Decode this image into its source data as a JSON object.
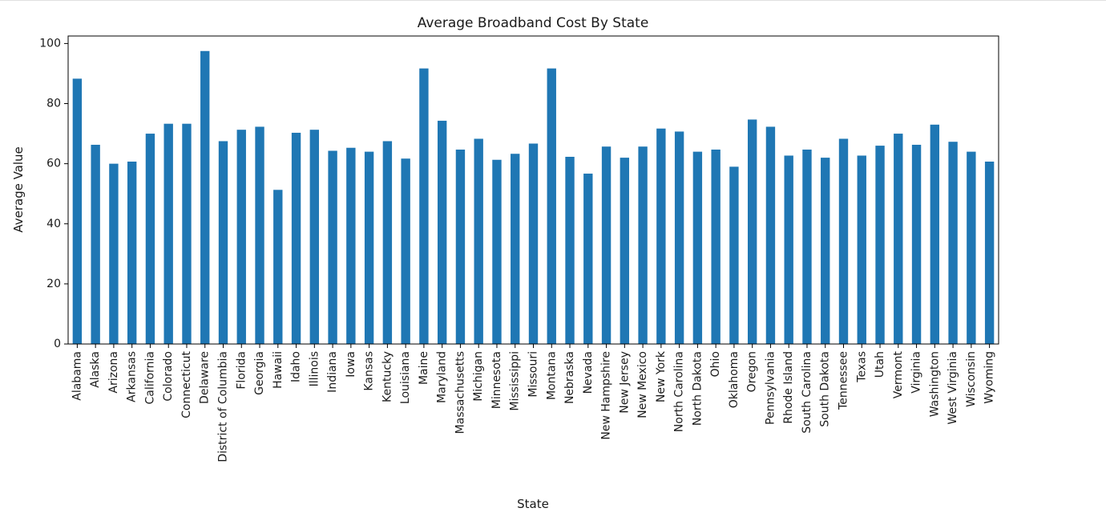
{
  "chart_data": {
    "type": "bar",
    "title": "Average Broadband Cost By State",
    "xlabel": "State",
    "ylabel": "Average Value",
    "ylim": [
      0,
      102.5
    ],
    "yticks": [
      0,
      20,
      40,
      60,
      80,
      100
    ],
    "bar_color": "#1f77b4",
    "grid": false,
    "legend": false,
    "categories": [
      "Alabama",
      "Alaska",
      "Arizona",
      "Arkansas",
      "California",
      "Colorado",
      "Connecticut",
      "Delaware",
      "District of Columbia",
      "Florida",
      "Georgia",
      "Hawaii",
      "Idaho",
      "Illinois",
      "Indiana",
      "Iowa",
      "Kansas",
      "Kentucky",
      "Louisiana",
      "Maine",
      "Maryland",
      "Massachusetts",
      "Michigan",
      "Minnesota",
      "Mississippi",
      "Missouri",
      "Montana",
      "Nebraska",
      "Nevada",
      "New Hampshire",
      "New Jersey",
      "New Mexico",
      "New York",
      "North Carolina",
      "North Dakota",
      "Ohio",
      "Oklahoma",
      "Oregon",
      "Pennsylvania",
      "Rhode Island",
      "South Carolina",
      "South Dakota",
      "Tennessee",
      "Texas",
      "Utah",
      "Vermont",
      "Virginia",
      "Washington",
      "West Virginia",
      "Wisconsin",
      "Wyoming"
    ],
    "values": [
      88.3,
      66.3,
      60.0,
      60.7,
      70.0,
      73.3,
      73.3,
      97.5,
      67.5,
      71.3,
      72.3,
      51.3,
      70.3,
      71.3,
      64.3,
      65.3,
      64.0,
      67.5,
      61.7,
      91.7,
      74.3,
      64.7,
      68.3,
      61.3,
      63.3,
      66.7,
      91.7,
      62.3,
      56.7,
      65.7,
      62.0,
      65.7,
      71.7,
      70.7,
      64.0,
      64.7,
      59.0,
      74.7,
      72.3,
      62.7,
      64.7,
      62.0,
      68.3,
      62.7,
      66.0,
      70.0,
      66.3,
      73.0,
      67.3,
      64.0,
      60.7
    ]
  }
}
